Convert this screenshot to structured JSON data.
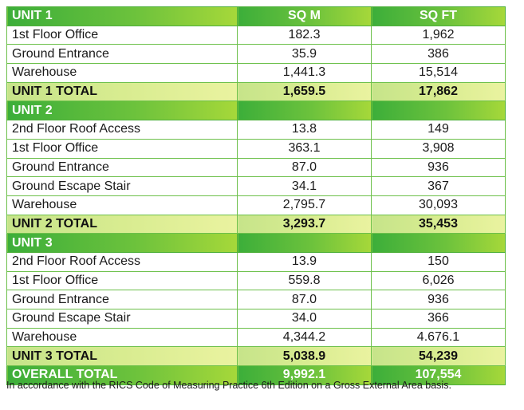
{
  "headers": {
    "col1": "UNIT 1",
    "col2": "SQ M",
    "col3": "SQ FT"
  },
  "unit1": {
    "rows": [
      {
        "name": "1st Floor Office",
        "sqm": "182.3",
        "sqft": "1,962"
      },
      {
        "name": "Ground Entrance",
        "sqm": "35.9",
        "sqft": "386"
      },
      {
        "name": "Warehouse",
        "sqm": "1,441.3",
        "sqft": "15,514"
      }
    ],
    "total": {
      "name": "UNIT 1 TOTAL",
      "sqm": "1,659.5",
      "sqft": "17,862"
    }
  },
  "unit2": {
    "title": "UNIT 2",
    "rows": [
      {
        "name": "2nd Floor Roof Access",
        "sqm": "13.8",
        "sqft": "149"
      },
      {
        "name": "1st Floor Office",
        "sqm": "363.1",
        "sqft": "3,908"
      },
      {
        "name": "Ground Entrance",
        "sqm": "87.0",
        "sqft": "936"
      },
      {
        "name": "Ground Escape Stair",
        "sqm": "34.1",
        "sqft": "367"
      },
      {
        "name": "Warehouse",
        "sqm": "2,795.7",
        "sqft": "30,093"
      }
    ],
    "total": {
      "name": "UNIT 2 TOTAL",
      "sqm": "3,293.7",
      "sqft": "35,453"
    }
  },
  "unit3": {
    "title": "UNIT 3",
    "rows": [
      {
        "name": "2nd Floor Roof Access",
        "sqm": "13.9",
        "sqft": "150"
      },
      {
        "name": "1st Floor Office",
        "sqm": "559.8",
        "sqft": "6,026"
      },
      {
        "name": "Ground Entrance",
        "sqm": "87.0",
        "sqft": "936"
      },
      {
        "name": "Ground Escape Stair",
        "sqm": "34.0",
        "sqft": "366"
      },
      {
        "name": "Warehouse",
        "sqm": "4,344.2",
        "sqft": "4.676.1"
      }
    ],
    "total": {
      "name": "UNIT 3 TOTAL",
      "sqm": "5,038.9",
      "sqft": "54,239"
    }
  },
  "overall": {
    "name": "OVERALL TOTAL",
    "sqm": "9,992.1",
    "sqft": "107,554"
  },
  "footnote": "In accordance with the RICS Code of Measuring Practice 6th Edition on a Gross External Area basis."
}
